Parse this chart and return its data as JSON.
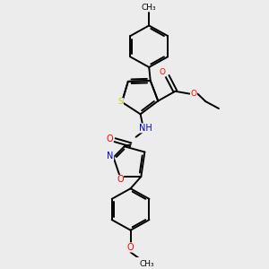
{
  "background_color": "#ececec",
  "figsize": [
    3.0,
    3.0
  ],
  "dpi": 100,
  "atom_colors": {
    "C": "#000000",
    "N": "#0000cd",
    "O": "#ff0000",
    "S": "#cccc00"
  },
  "bond_color": "#000000",
  "bond_width": 1.4,
  "font_size": 6.5,
  "xlim": [
    0,
    10
  ],
  "ylim": [
    0,
    10
  ]
}
